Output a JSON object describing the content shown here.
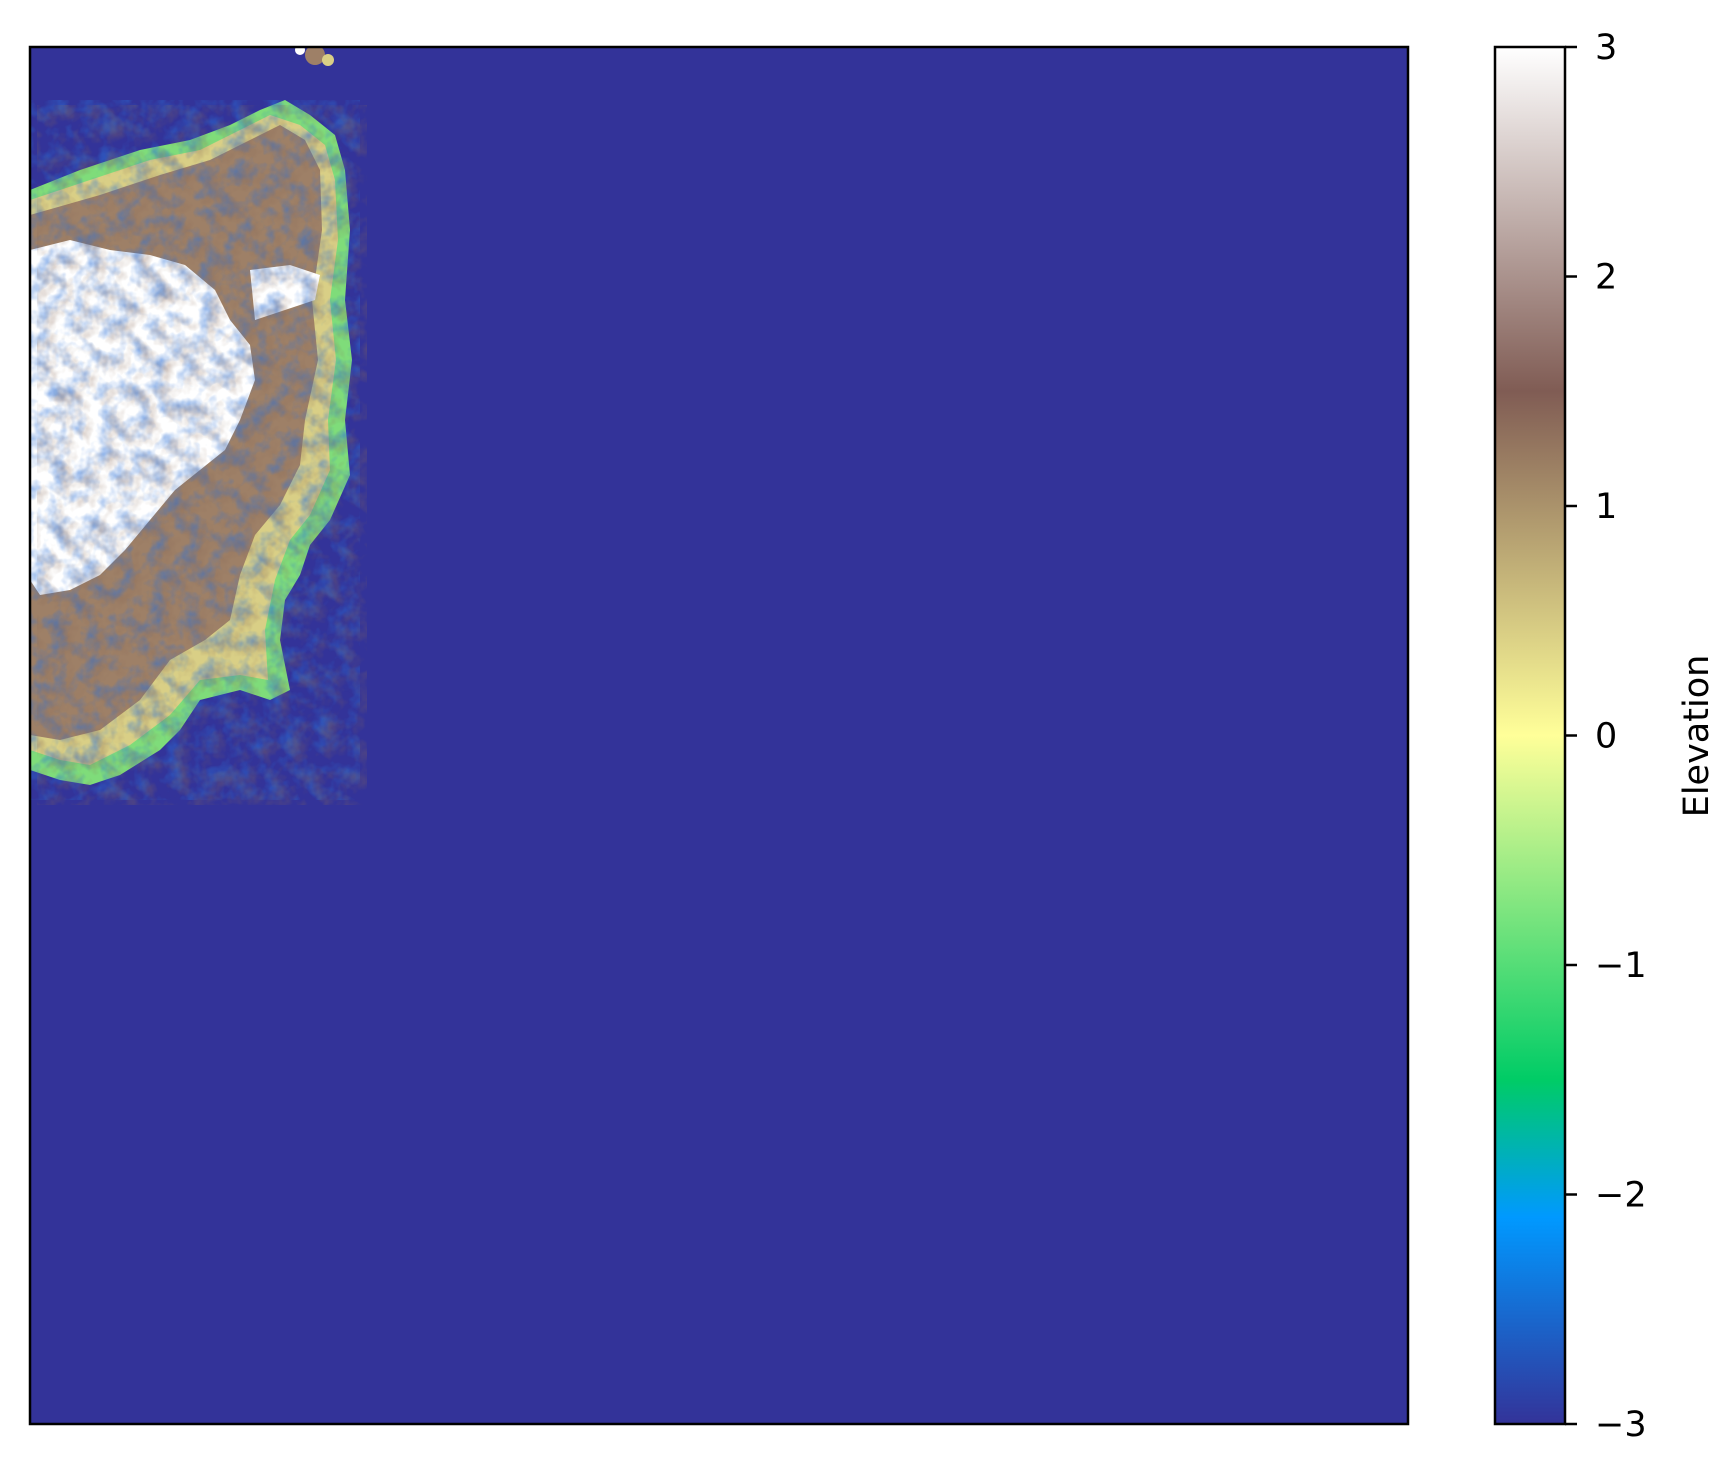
{
  "chart_data": {
    "type": "heatmap",
    "title": "",
    "xlabel": "",
    "ylabel": "",
    "x_ticks_visible": false,
    "y_ticks_visible": false,
    "colormap": "terrain",
    "colorbar": {
      "label": "Elevation",
      "range": [
        -3,
        3
      ],
      "ticks": [
        {
          "value": 3,
          "label": "3"
        },
        {
          "value": 2,
          "label": "2"
        },
        {
          "value": 1,
          "label": "1"
        },
        {
          "value": 0,
          "label": "0"
        },
        {
          "value": -1,
          "label": "−1"
        },
        {
          "value": -2,
          "label": "−2"
        },
        {
          "value": -3,
          "label": "−3"
        }
      ],
      "stops": [
        {
          "value": -3.0,
          "color": "#333399"
        },
        {
          "value": -2.1,
          "color": "#0099ff"
        },
        {
          "value": -1.5,
          "color": "#00cc66"
        },
        {
          "value": 0.0,
          "color": "#ffff99"
        },
        {
          "value": 1.5,
          "color": "#805c54"
        },
        {
          "value": 3.0,
          "color": "#ffffff"
        }
      ]
    },
    "background_value": -3,
    "ocean_color": "#333399",
    "landmass": "small irregular land region in the upper-left corner, peaking near the top of the scale"
  }
}
